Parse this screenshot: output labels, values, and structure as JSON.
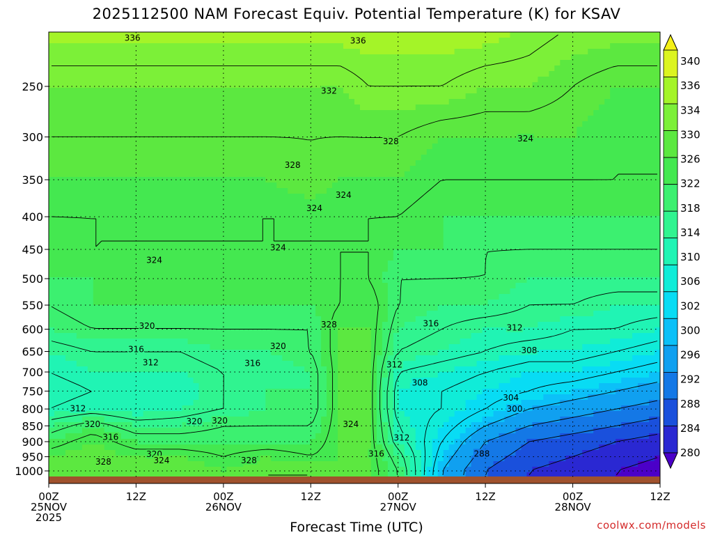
{
  "chart_data": {
    "type": "heatmap",
    "title": "2025112500 NAM Forecast Equiv. Potential Temperature (K) for KSAV",
    "xlabel": "Forecast Time (UTC)",
    "ylabel": "",
    "credit": "coolwx.com/models",
    "x_ticks": [
      {
        "hour": 0,
        "lines": [
          "00Z",
          "25NOV",
          "2025"
        ]
      },
      {
        "hour": 12,
        "lines": [
          "12Z"
        ]
      },
      {
        "hour": 24,
        "lines": [
          "00Z",
          "26NOV"
        ]
      },
      {
        "hour": 36,
        "lines": [
          "12Z"
        ]
      },
      {
        "hour": 48,
        "lines": [
          "00Z",
          "27NOV"
        ]
      },
      {
        "hour": 60,
        "lines": [
          "12Z"
        ]
      },
      {
        "hour": 72,
        "lines": [
          "00Z",
          "28NOV"
        ]
      },
      {
        "hour": 84,
        "lines": [
          "12Z"
        ]
      }
    ],
    "xlim": [
      0,
      84
    ],
    "y_ticks": [
      250,
      300,
      350,
      400,
      450,
      500,
      550,
      600,
      650,
      700,
      750,
      800,
      850,
      900,
      950,
      1000
    ],
    "ylim": [
      1020,
      200
    ],
    "y_scale": "log-pressure (hPa)",
    "grid": true,
    "colorbar": {
      "levels": [
        280,
        284,
        288,
        292,
        296,
        300,
        302,
        306,
        310,
        314,
        318,
        322,
        326,
        330,
        334,
        336,
        340
      ],
      "colors": [
        "#4b00c8",
        "#2a28d2",
        "#1a50dc",
        "#1478e6",
        "#10a0f0",
        "#0cc0f8",
        "#08dcf4",
        "#10ecd8",
        "#20f4b4",
        "#30f490",
        "#3cf070",
        "#44e850",
        "#5ce840",
        "#7cf038",
        "#a4f428",
        "#dcf420",
        "#f4f018"
      ]
    },
    "field": {
      "hours": [
        0,
        6,
        12,
        18,
        24,
        30,
        36,
        40,
        44,
        48,
        54,
        60,
        66,
        72,
        78,
        84
      ],
      "pressure_hpa": [
        1000,
        950,
        900,
        850,
        800,
        750,
        700,
        650,
        600,
        550,
        500,
        450,
        400,
        350,
        300,
        250,
        200
      ],
      "theta_e_k": [
        [
          326,
          328,
          327,
          328,
          326,
          328,
          328,
          326,
          326,
          320,
          300,
          292,
          288,
          286,
          284,
          282
        ],
        [
          326,
          328,
          326,
          326,
          324,
          326,
          324,
          326,
          326,
          318,
          302,
          294,
          290,
          288,
          286,
          284
        ],
        [
          322,
          326,
          322,
          322,
          322,
          322,
          322,
          326,
          326,
          314,
          304,
          296,
          292,
          290,
          288,
          286
        ],
        [
          318,
          322,
          318,
          318,
          320,
          320,
          320,
          326,
          326,
          312,
          306,
          300,
          296,
          294,
          292,
          290
        ],
        [
          312,
          314,
          312,
          314,
          316,
          318,
          318,
          326,
          326,
          310,
          308,
          304,
          300,
          298,
          296,
          294
        ],
        [
          310,
          312,
          314,
          312,
          316,
          318,
          318,
          326,
          326,
          310,
          308,
          306,
          304,
          302,
          300,
          298
        ],
        [
          312,
          314,
          314,
          314,
          316,
          316,
          318,
          326,
          326,
          312,
          310,
          308,
          306,
          306,
          304,
          302
        ],
        [
          314,
          316,
          316,
          316,
          318,
          318,
          320,
          326,
          326,
          316,
          314,
          312,
          310,
          310,
          308,
          306
        ],
        [
          318,
          320,
          320,
          320,
          320,
          320,
          320,
          326,
          326,
          318,
          316,
          314,
          314,
          312,
          312,
          310
        ],
        [
          320,
          322,
          322,
          322,
          322,
          322,
          322,
          324,
          326,
          320,
          318,
          318,
          316,
          316,
          314,
          314
        ],
        [
          322,
          322,
          324,
          322,
          322,
          322,
          322,
          324,
          324,
          320,
          320,
          320,
          318,
          318,
          318,
          318
        ],
        [
          322,
          324,
          324,
          324,
          324,
          324,
          324,
          324,
          324,
          322,
          322,
          320,
          320,
          320,
          320,
          320
        ],
        [
          324,
          324,
          324,
          324,
          324,
          324,
          324,
          324,
          324,
          324,
          322,
          322,
          322,
          322,
          322,
          322
        ],
        [
          326,
          326,
          326,
          326,
          326,
          326,
          328,
          326,
          326,
          326,
          324,
          324,
          324,
          324,
          324,
          324
        ],
        [
          328,
          328,
          328,
          328,
          328,
          328,
          328,
          328,
          328,
          328,
          326,
          326,
          326,
          326,
          324,
          324
        ],
        [
          330,
          330,
          330,
          330,
          330,
          330,
          330,
          330,
          332,
          332,
          332,
          330,
          330,
          328,
          326,
          326
        ],
        [
          336,
          336,
          336,
          336,
          336,
          336,
          336,
          336,
          336,
          336,
          336,
          336,
          334,
          332,
          332,
          332
        ]
      ]
    },
    "contour_labels": [
      {
        "text": "336",
        "hour": 11.5,
        "p": 210
      },
      {
        "text": "336",
        "hour": 42.5,
        "p": 212
      },
      {
        "text": "332",
        "hour": 38.5,
        "p": 254
      },
      {
        "text": "328",
        "hour": 47,
        "p": 305
      },
      {
        "text": "324",
        "hour": 65.5,
        "p": 302
      },
      {
        "text": "328",
        "hour": 33.5,
        "p": 332
      },
      {
        "text": "324",
        "hour": 36.5,
        "p": 388
      },
      {
        "text": "324",
        "hour": 40.5,
        "p": 370
      },
      {
        "text": "324",
        "hour": 31.5,
        "p": 447
      },
      {
        "text": "324",
        "hour": 14.5,
        "p": 468
      },
      {
        "text": "320",
        "hour": 13.5,
        "p": 593
      },
      {
        "text": "328",
        "hour": 38.5,
        "p": 590
      },
      {
        "text": "316",
        "hour": 52.5,
        "p": 588
      },
      {
        "text": "312",
        "hour": 64,
        "p": 597
      },
      {
        "text": "320",
        "hour": 31.5,
        "p": 638
      },
      {
        "text": "316",
        "hour": 12,
        "p": 645
      },
      {
        "text": "308",
        "hour": 66,
        "p": 648
      },
      {
        "text": "312",
        "hour": 14,
        "p": 677
      },
      {
        "text": "316",
        "hour": 28,
        "p": 678
      },
      {
        "text": "312",
        "hour": 47.5,
        "p": 682
      },
      {
        "text": "308",
        "hour": 51,
        "p": 728
      },
      {
        "text": "304",
        "hour": 63.5,
        "p": 768
      },
      {
        "text": "300",
        "hour": 64,
        "p": 800
      },
      {
        "text": "312",
        "hour": 4,
        "p": 799
      },
      {
        "text": "320",
        "hour": 6,
        "p": 845
      },
      {
        "text": "320",
        "hour": 20,
        "p": 837
      },
      {
        "text": "320",
        "hour": 23.5,
        "p": 835
      },
      {
        "text": "324",
        "hour": 41.5,
        "p": 845
      },
      {
        "text": "316",
        "hour": 8.5,
        "p": 885
      },
      {
        "text": "312",
        "hour": 48.5,
        "p": 888
      },
      {
        "text": "288",
        "hour": 59.5,
        "p": 940
      },
      {
        "text": "316",
        "hour": 45,
        "p": 940
      },
      {
        "text": "320",
        "hour": 14.5,
        "p": 942
      },
      {
        "text": "324",
        "hour": 15.5,
        "p": 963
      },
      {
        "text": "328",
        "hour": 7.5,
        "p": 968
      },
      {
        "text": "328",
        "hour": 27.5,
        "p": 963
      }
    ]
  }
}
